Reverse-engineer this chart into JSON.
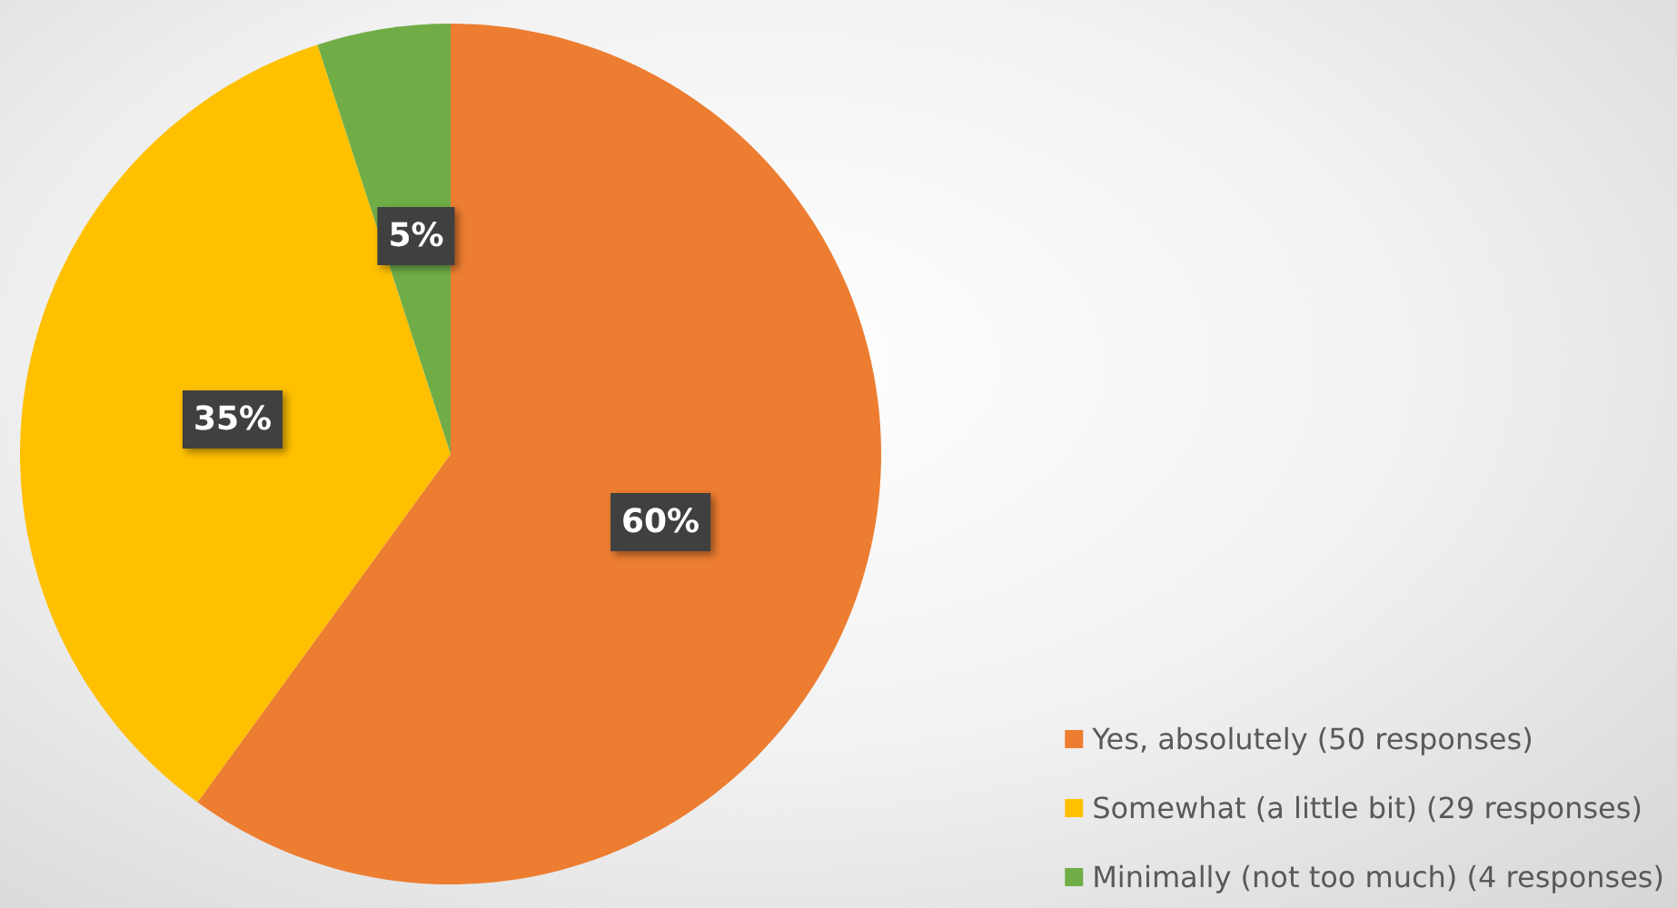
{
  "chart_data": {
    "type": "pie",
    "categories": [
      "Yes, absolutely (50 responses)",
      "Somewhat (a little bit) (29 responses)",
      "Minimally (not too much) (4 responses)"
    ],
    "values": [
      60,
      35,
      5
    ],
    "colors": [
      "#ed7d31",
      "#ffc000",
      "#70ad47"
    ],
    "value_labels": [
      "60%",
      "35%",
      "5%"
    ],
    "legend": "bottom right"
  }
}
